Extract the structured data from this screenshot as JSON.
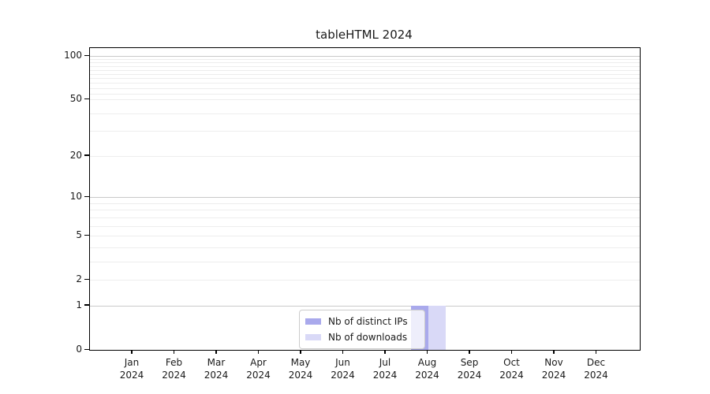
{
  "figure": {
    "title": "tableHTML 2024"
  },
  "chart_data": {
    "type": "bar",
    "title": "tableHTML 2024",
    "x_months": [
      "Jan",
      "Feb",
      "Mar",
      "Apr",
      "May",
      "Jun",
      "Jul",
      "Aug",
      "Sep",
      "Oct",
      "Nov",
      "Dec"
    ],
    "x_year": "2024",
    "categories": [
      "Jan 2024",
      "Feb 2024",
      "Mar 2024",
      "Apr 2024",
      "May 2024",
      "Jun 2024",
      "Jul 2024",
      "Aug 2024",
      "Sep 2024",
      "Oct 2024",
      "Nov 2024",
      "Dec 2024"
    ],
    "series": [
      {
        "name": "Nb of distinct IPs",
        "color": "#a9a9ec",
        "values": [
          0,
          0,
          0,
          0,
          0,
          0,
          0,
          1,
          0,
          0,
          0,
          0
        ]
      },
      {
        "name": "Nb of downloads",
        "color": "#d9d9f7",
        "values": [
          0,
          0,
          0,
          0,
          0,
          0,
          0,
          1,
          0,
          0,
          0,
          0
        ]
      }
    ],
    "y_axis": {
      "scale": "log1p",
      "tick_values": [
        0,
        1,
        2,
        5,
        10,
        20,
        50,
        100
      ],
      "tick_labels": [
        "0",
        "1",
        "2",
        "5",
        "10",
        "20",
        "50",
        "100"
      ],
      "major_gridline_values": [
        1,
        10,
        100
      ],
      "minor_gridline_values": [
        2,
        3,
        4,
        5,
        6,
        7,
        8,
        9,
        20,
        30,
        40,
        50,
        55,
        60,
        65,
        70,
        75,
        80,
        85,
        90,
        95
      ]
    },
    "legend": {
      "position": "bottom-center-inside",
      "entries": [
        "Nb of distinct IPs",
        "Nb of downloads"
      ]
    },
    "grid": "horizontal-only",
    "colors": {
      "major_grid": "#c9c9c9",
      "minor_grid": "#ededed",
      "axis": "#000000",
      "background": "#ffffff"
    }
  }
}
